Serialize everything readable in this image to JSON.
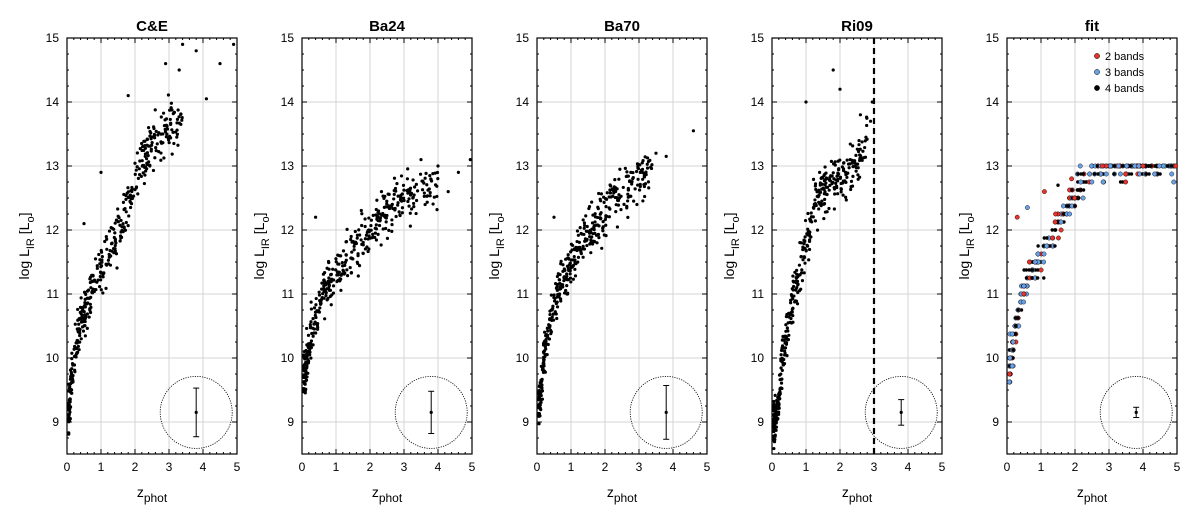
{
  "figure": {
    "xlabel_main": "z",
    "xlabel_sub": "phot",
    "ylabel_prefix": "log L",
    "ylabel_sub": "IR",
    "ylabel_unit_open": " [L",
    "ylabel_unit_sub": "o",
    "ylabel_unit_close": "]"
  },
  "chart_data": [
    {
      "type": "scatter",
      "title": "C&E",
      "xlim": [
        0,
        5
      ],
      "ylim": [
        8.5,
        15
      ],
      "xticks": [
        0,
        1,
        2,
        3,
        4,
        5
      ],
      "yticks": [
        9,
        10,
        11,
        12,
        13,
        14,
        15
      ],
      "grid": true,
      "trend": [
        [
          0.05,
          9.1
        ],
        [
          0.2,
          10.0
        ],
        [
          0.4,
          10.5
        ],
        [
          0.6,
          10.9
        ],
        [
          0.8,
          11.1
        ],
        [
          1.0,
          11.4
        ],
        [
          1.3,
          11.7
        ],
        [
          1.6,
          12.1
        ],
        [
          2.0,
          12.7
        ],
        [
          2.3,
          13.2
        ],
        [
          2.8,
          13.5
        ],
        [
          3.4,
          13.8
        ]
      ],
      "extra_points": [
        [
          1.0,
          12.9
        ],
        [
          1.8,
          14.1
        ],
        [
          2.9,
          14.6
        ],
        [
          3.3,
          14.5
        ],
        [
          3.4,
          14.9
        ],
        [
          3.8,
          14.8
        ],
        [
          4.1,
          14.05
        ],
        [
          4.5,
          14.6
        ],
        [
          4.9,
          14.9
        ],
        [
          0.5,
          12.1
        ],
        [
          2.4,
          13.6
        ]
      ],
      "error_bar": {
        "x": 3.8,
        "y": 9.15,
        "yerr": 0.38
      },
      "vline": null
    },
    {
      "type": "scatter",
      "title": "Ba24",
      "xlim": [
        0,
        5
      ],
      "ylim": [
        8.5,
        15
      ],
      "xticks": [
        0,
        1,
        2,
        3,
        4,
        5
      ],
      "yticks": [
        9,
        10,
        11,
        12,
        13,
        14,
        15
      ],
      "grid": true,
      "trend": [
        [
          0.1,
          9.8
        ],
        [
          0.3,
          10.4
        ],
        [
          0.5,
          10.8
        ],
        [
          0.8,
          11.1
        ],
        [
          1.0,
          11.3
        ],
        [
          1.5,
          11.7
        ],
        [
          2.0,
          12.0
        ],
        [
          2.5,
          12.3
        ],
        [
          3.0,
          12.5
        ],
        [
          3.5,
          12.6
        ],
        [
          4.0,
          12.7
        ]
      ],
      "extra_points": [
        [
          0.4,
          12.2
        ],
        [
          3.5,
          13.1
        ],
        [
          4.0,
          13.0
        ],
        [
          4.3,
          12.6
        ],
        [
          4.6,
          12.9
        ],
        [
          4.95,
          13.1
        ],
        [
          3.1,
          12.8
        ]
      ],
      "error_bar": {
        "x": 3.8,
        "y": 9.15,
        "yerr": 0.33
      },
      "vline": null
    },
    {
      "type": "scatter",
      "title": "Ba70",
      "xlim": [
        0,
        5
      ],
      "ylim": [
        8.5,
        15
      ],
      "xticks": [
        0,
        1,
        2,
        3,
        4,
        5
      ],
      "yticks": [
        9,
        10,
        11,
        12,
        13,
        14,
        15
      ],
      "grid": true,
      "trend": [
        [
          0.1,
          9.3
        ],
        [
          0.2,
          10.0
        ],
        [
          0.4,
          10.6
        ],
        [
          0.6,
          11.0
        ],
        [
          0.9,
          11.3
        ],
        [
          1.2,
          11.7
        ],
        [
          1.6,
          12.0
        ],
        [
          2.0,
          12.3
        ],
        [
          2.5,
          12.6
        ],
        [
          3.0,
          12.8
        ],
        [
          3.4,
          13.0
        ]
      ],
      "extra_points": [
        [
          0.5,
          12.2
        ],
        [
          3.5,
          13.2
        ],
        [
          3.8,
          13.15
        ],
        [
          4.6,
          13.55
        ],
        [
          3.1,
          12.9
        ]
      ],
      "error_bar": {
        "x": 3.8,
        "y": 9.15,
        "yerr": 0.42
      },
      "vline": null
    },
    {
      "type": "scatter",
      "title": "Ri09",
      "xlim": [
        0,
        5
      ],
      "ylim": [
        8.5,
        15
      ],
      "xticks": [
        0,
        1,
        2,
        3,
        4,
        5
      ],
      "yticks": [
        9,
        10,
        11,
        12,
        13,
        14,
        15
      ],
      "grid": true,
      "trend": [
        [
          0.1,
          9.0
        ],
        [
          0.3,
          9.9
        ],
        [
          0.5,
          10.6
        ],
        [
          0.7,
          11.1
        ],
        [
          0.9,
          11.6
        ],
        [
          1.1,
          12.0
        ],
        [
          1.3,
          12.5
        ],
        [
          1.6,
          12.7
        ],
        [
          2.0,
          12.8
        ],
        [
          2.4,
          12.9
        ],
        [
          2.8,
          13.4
        ]
      ],
      "extra_points": [
        [
          1.0,
          14.0
        ],
        [
          1.8,
          14.5
        ],
        [
          2.0,
          14.2
        ],
        [
          2.6,
          13.8
        ],
        [
          2.9,
          13.7
        ],
        [
          2.95,
          14.0
        ],
        [
          1.4,
          12.9
        ]
      ],
      "error_bar": {
        "x": 3.8,
        "y": 9.15,
        "yerr": 0.2
      },
      "vline": 3
    },
    {
      "type": "scatter",
      "title": "fit",
      "xlim": [
        0,
        5
      ],
      "ylim": [
        8.5,
        15
      ],
      "xticks": [
        0,
        1,
        2,
        3,
        4,
        5
      ],
      "yticks": [
        9,
        10,
        11,
        12,
        13,
        14,
        15
      ],
      "grid": true,
      "trend": [
        [
          0.05,
          9.75
        ],
        [
          0.2,
          10.3
        ],
        [
          0.4,
          10.9
        ],
        [
          0.6,
          11.2
        ],
        [
          0.9,
          11.5
        ],
        [
          1.2,
          11.8
        ],
        [
          1.5,
          12.1
        ],
        [
          1.8,
          12.4
        ],
        [
          2.2,
          12.7
        ],
        [
          2.6,
          12.95
        ],
        [
          3.0,
          13.0
        ],
        [
          5.0,
          13.0
        ]
      ],
      "extra_points": [
        [
          0.3,
          12.2
        ],
        [
          0.6,
          12.35
        ],
        [
          1.1,
          12.6
        ],
        [
          1.5,
          12.7
        ],
        [
          1.9,
          12.8
        ]
      ],
      "saturation": {
        "y": 13.0,
        "xmin": 2.8,
        "xmax": 5.0
      },
      "error_bar": {
        "x": 3.8,
        "y": 9.15,
        "yerr": 0.08
      },
      "vline": null,
      "legend": {
        "position": "top-right",
        "entries": [
          {
            "label": "2 bands",
            "color": "#e8322c"
          },
          {
            "label": "3 bands",
            "color": "#6aa0e6"
          },
          {
            "label": "4 bands",
            "color": "#000000"
          }
        ]
      }
    }
  ]
}
